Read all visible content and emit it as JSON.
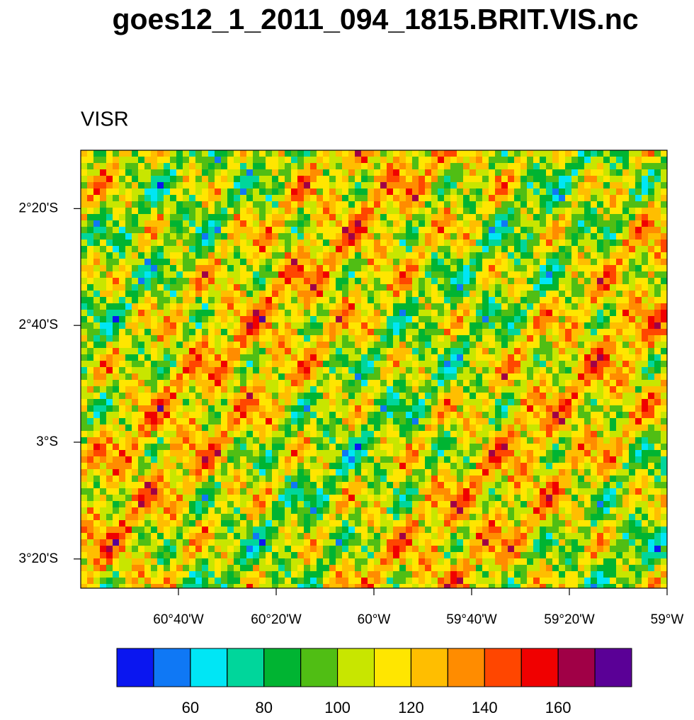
{
  "title": "goes12_1_2011_094_1815.BRIT.VIS.nc",
  "subtitle": "VISR",
  "map": {
    "xlim": [
      -61.0,
      -59.0
    ],
    "ylim": [
      -3.4167,
      -2.1667
    ],
    "xticks": [
      {
        "value": -60.6667,
        "label": "60°40'W"
      },
      {
        "value": -60.3333,
        "label": "60°20'W"
      },
      {
        "value": -60.0,
        "label": "60°W"
      },
      {
        "value": -59.6667,
        "label": "59°40'W"
      },
      {
        "value": -59.3333,
        "label": "59°20'W"
      },
      {
        "value": -59.0,
        "label": "59°W"
      }
    ],
    "yticks": [
      {
        "value": -2.3333,
        "label": "2°20'S"
      },
      {
        "value": -2.6667,
        "label": "2°40'S"
      },
      {
        "value": -3.0,
        "label": "3°S"
      },
      {
        "value": -3.3333,
        "label": "3°20'S"
      }
    ]
  },
  "colorbar": {
    "levels": [
      50,
      60,
      70,
      80,
      90,
      100,
      110,
      120,
      130,
      140,
      150,
      160,
      170
    ],
    "ticks": [
      60,
      80,
      100,
      120,
      140,
      160
    ],
    "colors": [
      "#0a16f0",
      "#0f78f5",
      "#00e6f5",
      "#00d69b",
      "#00b432",
      "#50be14",
      "#c8e600",
      "#ffe600",
      "#ffbe00",
      "#ff8c00",
      "#ff4600",
      "#f00000",
      "#a00046",
      "#5a0096"
    ]
  }
}
